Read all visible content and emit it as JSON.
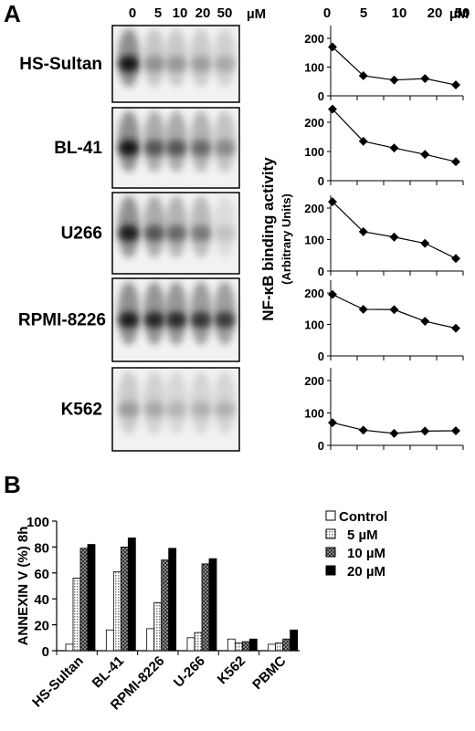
{
  "panel_a": {
    "letter": "A",
    "concentrations": [
      "0",
      "5",
      "10",
      "20",
      "50"
    ],
    "unit": "µM",
    "cell_lines": [
      "HS-Sultan",
      "BL-41",
      "U266",
      "RPMI-8226",
      "K562"
    ],
    "y_label": "NF-κB binding activity",
    "y_sublabel": "(Arbitrary Units)"
  },
  "panel_b": {
    "letter": "B",
    "y_label": "ANNEXIN V (%) 8h"
  },
  "chart_data": [
    {
      "type": "line",
      "title": "",
      "x": [
        "0",
        "5",
        "10",
        "20",
        "50"
      ],
      "values": [
        170,
        70,
        55,
        60,
        38
      ],
      "ylim": [
        0,
        200
      ],
      "yticks": [
        0,
        100,
        200
      ]
    },
    {
      "type": "line",
      "title": "",
      "x": [
        "0",
        "5",
        "10",
        "20",
        "50"
      ],
      "values": [
        245,
        135,
        112,
        90,
        65
      ],
      "ylim": [
        0,
        200
      ],
      "yticks": [
        0,
        100,
        200
      ]
    },
    {
      "type": "line",
      "title": "",
      "x": [
        "0",
        "5",
        "10",
        "20",
        "50"
      ],
      "values": [
        220,
        125,
        108,
        88,
        40
      ],
      "ylim": [
        0,
        200
      ],
      "yticks": [
        0,
        100,
        200
      ]
    },
    {
      "type": "line",
      "title": "",
      "x": [
        "0",
        "5",
        "10",
        "20",
        "50"
      ],
      "values": [
        195,
        148,
        147,
        110,
        88
      ],
      "ylim": [
        0,
        200
      ],
      "yticks": [
        0,
        100,
        200
      ]
    },
    {
      "type": "line",
      "title": "",
      "x": [
        "0",
        "5",
        "10",
        "20",
        "50"
      ],
      "values": [
        70,
        47,
        37,
        44,
        45
      ],
      "ylim": [
        0,
        200
      ],
      "yticks": [
        0,
        100,
        200
      ]
    },
    {
      "type": "bar",
      "title": "",
      "ylabel": "ANNEXIN V (%) 8h",
      "ylim": [
        0,
        100
      ],
      "yticks": [
        0,
        20,
        40,
        60,
        80,
        100
      ],
      "categories": [
        "HS-Sultan",
        "BL-41",
        "RPMI-8226",
        "U-266",
        "K562",
        "PBMC"
      ],
      "series": [
        {
          "name": "Control",
          "values": [
            5,
            16,
            17,
            10,
            9,
            5
          ]
        },
        {
          "name": "5 µM",
          "values": [
            56,
            61,
            37,
            14,
            6,
            6
          ]
        },
        {
          "name": "10 µM",
          "values": [
            79,
            80,
            70,
            67,
            7,
            9
          ]
        },
        {
          "name": "20 µM",
          "values": [
            82,
            87,
            79,
            71,
            9,
            16
          ]
        }
      ],
      "legend_position": "right"
    }
  ]
}
